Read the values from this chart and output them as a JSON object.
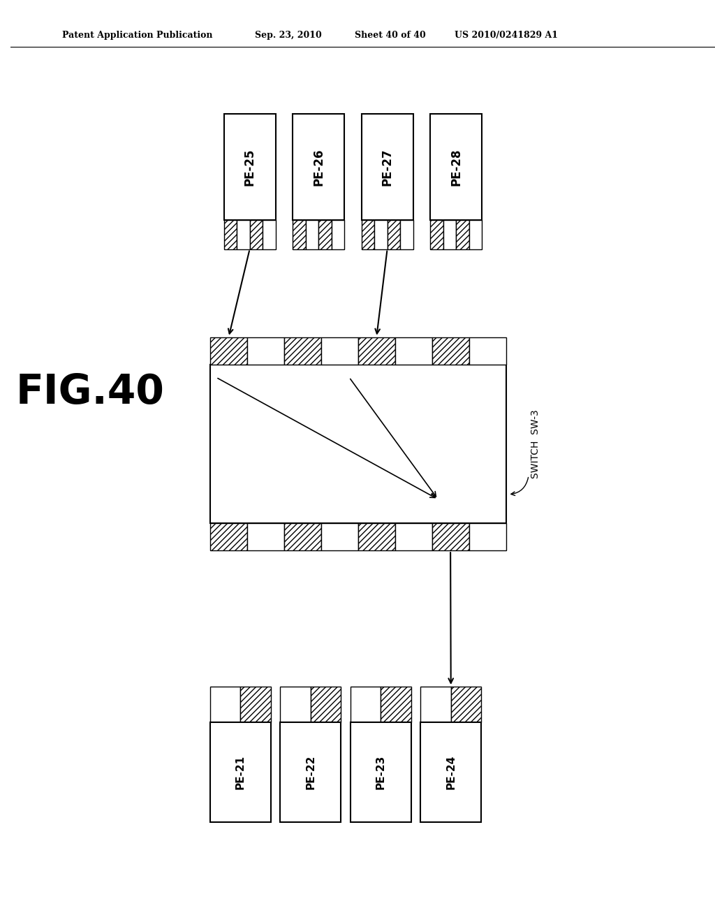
{
  "bg_color": "#ffffff",
  "header_left": "Patent Application Publication",
  "header_date": "Sep. 23, 2010",
  "header_sheet": "Sheet 40 of 40",
  "header_patent": "US 2010/0241829 A1",
  "fig_label": "FIG.40",
  "top_pe_labels": [
    "PE-25",
    "PE-26",
    "PE-27",
    "PE-28"
  ],
  "bottom_pe_labels": [
    "PE-21",
    "PE-22",
    "PE-23",
    "PE-24"
  ],
  "switch_label": "SWITCH  SW-3"
}
